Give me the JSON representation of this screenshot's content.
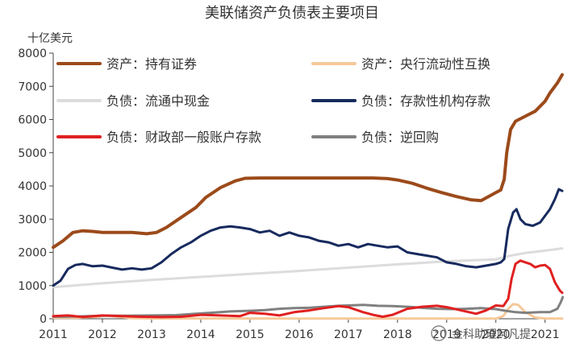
{
  "chart_data": {
    "type": "line",
    "title": "美联储资产负债表主要项目",
    "unit_label": "十亿美元",
    "xlabel": "",
    "ylabel": "",
    "ylim": [
      0,
      8000
    ],
    "xlim": [
      2011,
      2021.3
    ],
    "y_ticks": [
      "0",
      "1000",
      "2000",
      "3000",
      "4000",
      "5000",
      "6000",
      "7000",
      "8000"
    ],
    "x_ticks": [
      {
        "value": 2011,
        "label": "2011"
      },
      {
        "value": 2012,
        "label": "2012"
      },
      {
        "value": 2013,
        "label": "2013"
      },
      {
        "value": 2014,
        "label": "2014"
      },
      {
        "value": 2015,
        "label": "2015"
      },
      {
        "value": 2016,
        "label": "2016"
      },
      {
        "value": 2017,
        "label": "2017"
      },
      {
        "value": 2018,
        "label": "2018"
      },
      {
        "value": 2019,
        "label": "2019"
      },
      {
        "value": 2020,
        "label": "2020"
      },
      {
        "value": 2021,
        "label": "2021"
      }
    ],
    "grid": false,
    "legend_position": "top, inside plot, two columns",
    "series": [
      {
        "name": "资产：持有证券",
        "color": "#9c4a1a",
        "width": 4,
        "points": [
          [
            2011.0,
            2150
          ],
          [
            2011.2,
            2350
          ],
          [
            2011.4,
            2600
          ],
          [
            2011.6,
            2650
          ],
          [
            2011.8,
            2630
          ],
          [
            2012.0,
            2600
          ],
          [
            2012.3,
            2600
          ],
          [
            2012.6,
            2600
          ],
          [
            2012.9,
            2560
          ],
          [
            2013.1,
            2600
          ],
          [
            2013.3,
            2750
          ],
          [
            2013.6,
            3050
          ],
          [
            2013.9,
            3350
          ],
          [
            2014.1,
            3650
          ],
          [
            2014.4,
            3950
          ],
          [
            2014.7,
            4150
          ],
          [
            2014.9,
            4230
          ],
          [
            2015.2,
            4240
          ],
          [
            2015.6,
            4240
          ],
          [
            2016.0,
            4240
          ],
          [
            2016.5,
            4240
          ],
          [
            2017.0,
            4240
          ],
          [
            2017.5,
            4240
          ],
          [
            2017.8,
            4220
          ],
          [
            2018.0,
            4180
          ],
          [
            2018.3,
            4080
          ],
          [
            2018.6,
            3930
          ],
          [
            2018.9,
            3800
          ],
          [
            2019.2,
            3680
          ],
          [
            2019.5,
            3580
          ],
          [
            2019.7,
            3560
          ],
          [
            2019.85,
            3680
          ],
          [
            2020.0,
            3800
          ],
          [
            2020.1,
            3880
          ],
          [
            2020.17,
            4200
          ],
          [
            2020.22,
            5000
          ],
          [
            2020.3,
            5700
          ],
          [
            2020.4,
            5950
          ],
          [
            2020.6,
            6100
          ],
          [
            2020.8,
            6250
          ],
          [
            2021.0,
            6550
          ],
          [
            2021.1,
            6800
          ],
          [
            2021.25,
            7100
          ],
          [
            2021.35,
            7350
          ]
        ]
      },
      {
        "name": "资产：央行流动性互换",
        "color": "#f5c99a",
        "width": 3,
        "points": [
          [
            2011.0,
            30
          ],
          [
            2011.5,
            30
          ],
          [
            2011.9,
            60
          ],
          [
            2012.1,
            100
          ],
          [
            2012.3,
            60
          ],
          [
            2012.6,
            20
          ],
          [
            2013.0,
            10
          ],
          [
            2016.0,
            5
          ],
          [
            2019.0,
            5
          ],
          [
            2020.0,
            5
          ],
          [
            2020.15,
            80
          ],
          [
            2020.25,
            300
          ],
          [
            2020.35,
            440
          ],
          [
            2020.45,
            420
          ],
          [
            2020.6,
            200
          ],
          [
            2020.8,
            40
          ],
          [
            2021.0,
            10
          ],
          [
            2021.35,
            5
          ]
        ]
      },
      {
        "name": "负债：流通中现金",
        "color": "#dcdcdc",
        "width": 3,
        "points": [
          [
            2011.0,
            950
          ],
          [
            2012.0,
            1070
          ],
          [
            2013.0,
            1170
          ],
          [
            2014.0,
            1260
          ],
          [
            2015.0,
            1350
          ],
          [
            2016.0,
            1440
          ],
          [
            2017.0,
            1540
          ],
          [
            2018.0,
            1640
          ],
          [
            2019.0,
            1730
          ],
          [
            2020.0,
            1790
          ],
          [
            2020.3,
            1900
          ],
          [
            2020.6,
            1980
          ],
          [
            2021.0,
            2050
          ],
          [
            2021.35,
            2120
          ]
        ]
      },
      {
        "name": "负债：存款性机构存款",
        "color": "#172a5e",
        "width": 3,
        "points": [
          [
            2011.0,
            1000
          ],
          [
            2011.15,
            1150
          ],
          [
            2011.3,
            1500
          ],
          [
            2011.45,
            1620
          ],
          [
            2011.6,
            1650
          ],
          [
            2011.8,
            1580
          ],
          [
            2012.0,
            1600
          ],
          [
            2012.2,
            1540
          ],
          [
            2012.4,
            1480
          ],
          [
            2012.6,
            1520
          ],
          [
            2012.8,
            1480
          ],
          [
            2013.0,
            1520
          ],
          [
            2013.2,
            1700
          ],
          [
            2013.4,
            1950
          ],
          [
            2013.6,
            2150
          ],
          [
            2013.8,
            2300
          ],
          [
            2014.0,
            2500
          ],
          [
            2014.2,
            2650
          ],
          [
            2014.4,
            2750
          ],
          [
            2014.6,
            2780
          ],
          [
            2014.8,
            2750
          ],
          [
            2015.0,
            2700
          ],
          [
            2015.2,
            2600
          ],
          [
            2015.4,
            2650
          ],
          [
            2015.6,
            2500
          ],
          [
            2015.8,
            2600
          ],
          [
            2016.0,
            2500
          ],
          [
            2016.2,
            2450
          ],
          [
            2016.4,
            2350
          ],
          [
            2016.6,
            2300
          ],
          [
            2016.8,
            2200
          ],
          [
            2017.0,
            2250
          ],
          [
            2017.2,
            2150
          ],
          [
            2017.4,
            2250
          ],
          [
            2017.6,
            2200
          ],
          [
            2017.8,
            2150
          ],
          [
            2018.0,
            2180
          ],
          [
            2018.2,
            2000
          ],
          [
            2018.4,
            1950
          ],
          [
            2018.6,
            1900
          ],
          [
            2018.8,
            1850
          ],
          [
            2019.0,
            1700
          ],
          [
            2019.2,
            1650
          ],
          [
            2019.4,
            1580
          ],
          [
            2019.6,
            1550
          ],
          [
            2019.8,
            1600
          ],
          [
            2020.0,
            1650
          ],
          [
            2020.1,
            1700
          ],
          [
            2020.17,
            1800
          ],
          [
            2020.25,
            2700
          ],
          [
            2020.35,
            3200
          ],
          [
            2020.42,
            3300
          ],
          [
            2020.5,
            3000
          ],
          [
            2020.6,
            2850
          ],
          [
            2020.75,
            2800
          ],
          [
            2020.9,
            2900
          ],
          [
            2021.0,
            3100
          ],
          [
            2021.1,
            3300
          ],
          [
            2021.2,
            3600
          ],
          [
            2021.28,
            3900
          ],
          [
            2021.35,
            3850
          ]
        ]
      },
      {
        "name": "负债：财政部一般账户存款",
        "color": "#e02020",
        "width": 3,
        "points": [
          [
            2011.0,
            80
          ],
          [
            2011.3,
            100
          ],
          [
            2011.6,
            50
          ],
          [
            2012.0,
            100
          ],
          [
            2012.4,
            80
          ],
          [
            2012.8,
            60
          ],
          [
            2013.2,
            50
          ],
          [
            2013.6,
            60
          ],
          [
            2014.0,
            120
          ],
          [
            2014.4,
            100
          ],
          [
            2014.8,
            80
          ],
          [
            2015.0,
            180
          ],
          [
            2015.3,
            150
          ],
          [
            2015.6,
            100
          ],
          [
            2015.9,
            200
          ],
          [
            2016.2,
            250
          ],
          [
            2016.5,
            320
          ],
          [
            2016.8,
            380
          ],
          [
            2017.0,
            350
          ],
          [
            2017.3,
            200
          ],
          [
            2017.5,
            120
          ],
          [
            2017.7,
            60
          ],
          [
            2017.9,
            120
          ],
          [
            2018.2,
            300
          ],
          [
            2018.5,
            360
          ],
          [
            2018.8,
            390
          ],
          [
            2019.0,
            350
          ],
          [
            2019.3,
            250
          ],
          [
            2019.6,
            150
          ],
          [
            2019.8,
            250
          ],
          [
            2020.0,
            400
          ],
          [
            2020.15,
            380
          ],
          [
            2020.25,
            600
          ],
          [
            2020.32,
            1200
          ],
          [
            2020.4,
            1650
          ],
          [
            2020.5,
            1750
          ],
          [
            2020.6,
            1700
          ],
          [
            2020.7,
            1650
          ],
          [
            2020.8,
            1550
          ],
          [
            2020.9,
            1600
          ],
          [
            2021.0,
            1620
          ],
          [
            2021.1,
            1500
          ],
          [
            2021.2,
            1100
          ],
          [
            2021.3,
            850
          ],
          [
            2021.35,
            780
          ]
        ]
      },
      {
        "name": "负债：逆回购",
        "color": "#808080",
        "width": 3,
        "points": [
          [
            2011.0,
            60
          ],
          [
            2011.5,
            70
          ],
          [
            2012.0,
            90
          ],
          [
            2012.5,
            90
          ],
          [
            2013.0,
            100
          ],
          [
            2013.5,
            110
          ],
          [
            2013.9,
            150
          ],
          [
            2014.2,
            180
          ],
          [
            2014.6,
            220
          ],
          [
            2015.0,
            240
          ],
          [
            2015.3,
            260
          ],
          [
            2015.6,
            300
          ],
          [
            2015.9,
            320
          ],
          [
            2016.2,
            330
          ],
          [
            2016.5,
            360
          ],
          [
            2016.8,
            390
          ],
          [
            2017.0,
            400
          ],
          [
            2017.3,
            420
          ],
          [
            2017.6,
            390
          ],
          [
            2017.9,
            380
          ],
          [
            2018.2,
            360
          ],
          [
            2018.5,
            330
          ],
          [
            2018.8,
            300
          ],
          [
            2019.1,
            290
          ],
          [
            2019.4,
            300
          ],
          [
            2019.7,
            320
          ],
          [
            2020.0,
            290
          ],
          [
            2020.2,
            240
          ],
          [
            2020.4,
            200
          ],
          [
            2020.6,
            180
          ],
          [
            2020.9,
            200
          ],
          [
            2021.1,
            200
          ],
          [
            2021.25,
            300
          ],
          [
            2021.32,
            500
          ],
          [
            2021.36,
            650
          ]
        ]
      }
    ]
  },
  "watermark": "金科助理阿凡提"
}
